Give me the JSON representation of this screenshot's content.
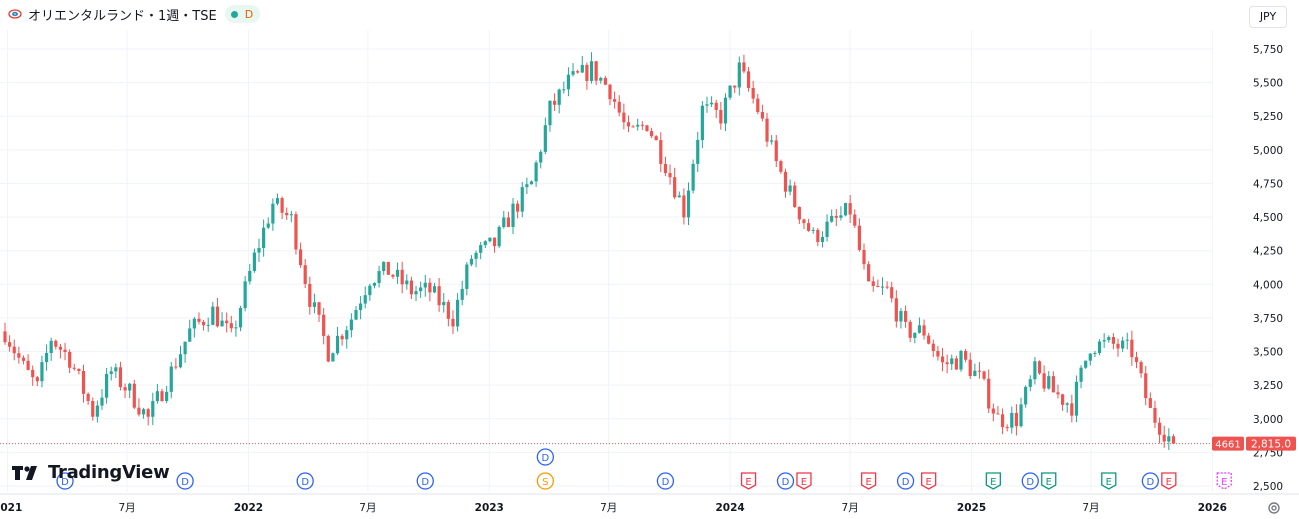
{
  "header": {
    "title": "オリエンタルランド・1週・TSE",
    "badge": "D"
  },
  "currency": "JPY",
  "brand": "TradingView",
  "price_label": "2,815.0",
  "countdown_label": "4661",
  "colors": {
    "up": "#26a69a",
    "down": "#ef5350",
    "event_d": "#2962ff",
    "event_e_red": "#f23645",
    "event_e_green": "#089981",
    "event_s": "#ff9800",
    "event_future": "#e040fb"
  },
  "chart_data": {
    "type": "candlestick",
    "ylim": [
      2450,
      5800
    ],
    "y_ticks": [
      "5,750",
      "5,500",
      "5,250",
      "5,000",
      "4,750",
      "4,500",
      "4,250",
      "4,000",
      "3,750",
      "3,500",
      "3,250",
      "3,000",
      "2,750",
      "2,500"
    ],
    "y_tick_values": [
      5750,
      5500,
      5250,
      5000,
      4750,
      4500,
      4250,
      4000,
      3750,
      3500,
      3250,
      3000,
      2750,
      2500
    ],
    "x_ticks": [
      "2021",
      "7月",
      "2022",
      "7月",
      "2023",
      "7月",
      "2024",
      "7月",
      "2025",
      "7月",
      "2026"
    ],
    "x_tick_dates": [
      "2021-01-01",
      "2021-07-01",
      "2022-01-01",
      "2022-07-01",
      "2023-01-01",
      "2023-07-01",
      "2024-01-01",
      "2024-07-01",
      "2025-01-01",
      "2025-07-01",
      "2026-01-01"
    ],
    "x_range": [
      "2020-12-28",
      "2026-01-05"
    ],
    "last_price": 2815.0,
    "close_path": [
      {
        "date": "2020-12-28",
        "close": 3650
      },
      {
        "date": "2021-01-25",
        "close": 3380
      },
      {
        "date": "2021-02-15",
        "close": 3230
      },
      {
        "date": "2021-03-08",
        "close": 3600
      },
      {
        "date": "2021-04-05",
        "close": 3450
      },
      {
        "date": "2021-05-10",
        "close": 3050
      },
      {
        "date": "2021-06-07",
        "close": 3350
      },
      {
        "date": "2021-07-05",
        "close": 3200
      },
      {
        "date": "2021-08-02",
        "close": 3000
      },
      {
        "date": "2021-09-06",
        "close": 3350
      },
      {
        "date": "2021-10-04",
        "close": 3650
      },
      {
        "date": "2021-11-08",
        "close": 3800
      },
      {
        "date": "2021-12-06",
        "close": 3600
      },
      {
        "date": "2022-01-10",
        "close": 4200
      },
      {
        "date": "2022-02-07",
        "close": 4600
      },
      {
        "date": "2022-03-07",
        "close": 4480
      },
      {
        "date": "2022-04-04",
        "close": 3900
      },
      {
        "date": "2022-05-02",
        "close": 3500
      },
      {
        "date": "2022-06-06",
        "close": 3750
      },
      {
        "date": "2022-07-04",
        "close": 4050
      },
      {
        "date": "2022-08-01",
        "close": 4100
      },
      {
        "date": "2022-09-05",
        "close": 3950
      },
      {
        "date": "2022-10-03",
        "close": 3950
      },
      {
        "date": "2022-11-07",
        "close": 3750
      },
      {
        "date": "2022-12-05",
        "close": 4200
      },
      {
        "date": "2023-01-09",
        "close": 4300
      },
      {
        "date": "2023-02-06",
        "close": 4550
      },
      {
        "date": "2023-03-06",
        "close": 4750
      },
      {
        "date": "2023-04-03",
        "close": 5300
      },
      {
        "date": "2023-05-01",
        "close": 5500
      },
      {
        "date": "2023-06-05",
        "close": 5600
      },
      {
        "date": "2023-07-03",
        "close": 5450
      },
      {
        "date": "2023-07-31",
        "close": 5100
      },
      {
        "date": "2023-08-28",
        "close": 5200
      },
      {
        "date": "2023-09-25",
        "close": 4900
      },
      {
        "date": "2023-10-23",
        "close": 4550
      },
      {
        "date": "2023-11-20",
        "close": 5300
      },
      {
        "date": "2023-12-18",
        "close": 5250
      },
      {
        "date": "2024-01-15",
        "close": 5600
      },
      {
        "date": "2024-02-12",
        "close": 5300
      },
      {
        "date": "2024-03-11",
        "close": 4900
      },
      {
        "date": "2024-04-08",
        "close": 4600
      },
      {
        "date": "2024-05-06",
        "close": 4350
      },
      {
        "date": "2024-06-03",
        "close": 4450
      },
      {
        "date": "2024-07-01",
        "close": 4550
      },
      {
        "date": "2024-07-29",
        "close": 3950
      },
      {
        "date": "2024-08-26",
        "close": 3950
      },
      {
        "date": "2024-09-23",
        "close": 3650
      },
      {
        "date": "2024-10-21",
        "close": 3650
      },
      {
        "date": "2024-11-18",
        "close": 3400
      },
      {
        "date": "2024-12-16",
        "close": 3450
      },
      {
        "date": "2025-01-13",
        "close": 3300
      },
      {
        "date": "2025-02-10",
        "close": 3000
      },
      {
        "date": "2025-03-10",
        "close": 3000
      },
      {
        "date": "2025-04-07",
        "close": 3350
      },
      {
        "date": "2025-05-05",
        "close": 3200
      },
      {
        "date": "2025-06-02",
        "close": 3100
      },
      {
        "date": "2025-06-30",
        "close": 3550
      },
      {
        "date": "2025-08-04",
        "close": 3550
      },
      {
        "date": "2025-09-01",
        "close": 3500
      },
      {
        "date": "2025-09-29",
        "close": 3050
      },
      {
        "date": "2025-11-03",
        "close": 2815
      }
    ],
    "events": [
      {
        "date": "2021-03-29",
        "label": "D",
        "kind": "d",
        "row": 0
      },
      {
        "date": "2021-09-27",
        "label": "D",
        "kind": "d",
        "row": 0
      },
      {
        "date": "2022-03-28",
        "label": "D",
        "kind": "d",
        "row": 0
      },
      {
        "date": "2022-09-26",
        "label": "D",
        "kind": "d",
        "row": 0
      },
      {
        "date": "2023-03-27",
        "label": "D",
        "kind": "d",
        "row": -1
      },
      {
        "date": "2023-03-27",
        "label": "S",
        "kind": "s",
        "row": 0
      },
      {
        "date": "2023-09-25",
        "label": "D",
        "kind": "d",
        "row": 0
      },
      {
        "date": "2024-01-29",
        "label": "E",
        "kind": "er",
        "row": 0
      },
      {
        "date": "2024-03-25",
        "label": "D",
        "kind": "d",
        "row": 0
      },
      {
        "date": "2024-04-22",
        "label": "E",
        "kind": "er",
        "row": 0
      },
      {
        "date": "2024-07-29",
        "label": "E",
        "kind": "er",
        "row": 0
      },
      {
        "date": "2024-09-23",
        "label": "D",
        "kind": "d",
        "row": 0
      },
      {
        "date": "2024-10-28",
        "label": "E",
        "kind": "er",
        "row": 0
      },
      {
        "date": "2025-02-03",
        "label": "E",
        "kind": "eg",
        "row": 0
      },
      {
        "date": "2025-03-31",
        "label": "D",
        "kind": "d",
        "row": 0
      },
      {
        "date": "2025-04-28",
        "label": "E",
        "kind": "eg",
        "row": 0
      },
      {
        "date": "2025-07-28",
        "label": "E",
        "kind": "eg",
        "row": 0
      },
      {
        "date": "2025-09-29",
        "label": "D",
        "kind": "d",
        "row": 0
      },
      {
        "date": "2025-10-27",
        "label": "E",
        "kind": "er",
        "row": 0
      },
      {
        "date": "2026-01-19",
        "label": "E",
        "kind": "ef",
        "row": 0
      }
    ]
  }
}
